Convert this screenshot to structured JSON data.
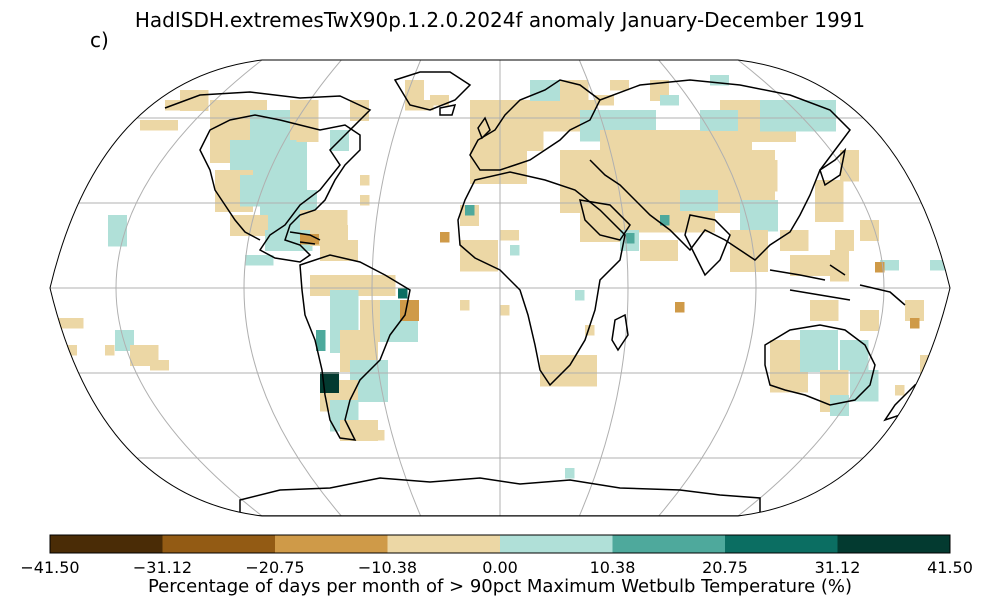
{
  "title": "HadISDH.extremesTwX90p.1.2.0.2024f anomaly January-December 1991",
  "panel_label": "c)",
  "colorbar": {
    "label": "Percentage of days per month of > 90pct Maximum Wetbulb Temperature (%)",
    "ticks": [
      "−41.50",
      "−31.12",
      "−20.75",
      "−10.38",
      "0.00",
      "10.38",
      "20.75",
      "31.12",
      "41.50"
    ],
    "bins": [
      {
        "from": -41.5,
        "to": -31.12,
        "color": "#4a2c06"
      },
      {
        "from": -31.12,
        "to": -20.75,
        "color": "#935b14"
      },
      {
        "from": -20.75,
        "to": -10.38,
        "color": "#cf9a48"
      },
      {
        "from": -10.38,
        "to": 0.0,
        "color": "#ecd7a5"
      },
      {
        "from": 0.0,
        "to": 10.38,
        "color": "#b0e0d8"
      },
      {
        "from": 10.38,
        "to": 20.75,
        "color": "#4ea99c"
      },
      {
        "from": 20.75,
        "to": 31.12,
        "color": "#0b6e62"
      },
      {
        "from": 31.12,
        "to": 41.5,
        "color": "#033a30"
      }
    ]
  },
  "map": {
    "projection": "Robinson",
    "graticule": true,
    "coastlines": true,
    "background": "#ffffff"
  }
}
